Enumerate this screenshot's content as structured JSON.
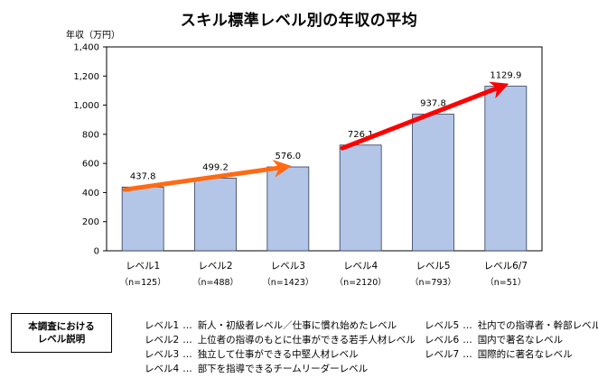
{
  "chart_data": {
    "type": "bar",
    "title": "スキル標準レベル別の年収の平均",
    "y_unit_label": "年収（万円）",
    "ylim": [
      0,
      1400
    ],
    "y_ticks": [
      "0",
      "200",
      "400",
      "600",
      "800",
      "1,000",
      "1,200",
      "1,400"
    ],
    "y_tick_values": [
      0,
      200,
      400,
      600,
      800,
      1000,
      1200,
      1400
    ],
    "categories": [
      "レベル1",
      "レベル2",
      "レベル3",
      "レベル4",
      "レベル5",
      "レベル6/7"
    ],
    "sample_sizes": [
      "（n=125）",
      "（n=488）",
      "（n=1423）",
      "（n=2120）",
      "（n=793）",
      "（n=51）"
    ],
    "values": [
      437.8,
      499.2,
      576.0,
      726.1,
      937.8,
      1129.9
    ],
    "value_labels": [
      "437.8",
      "499.2",
      "576.0",
      "726.1",
      "937.8",
      "1129.9"
    ],
    "grid": false,
    "colors": {
      "bar_fill": "#b4c6e7",
      "bar_stroke": "#2f3b5c",
      "arrow_low": "#ff6a13",
      "arrow_high": "#ff0000"
    },
    "arrows": [
      {
        "from": [
          0,
          420
        ],
        "to": [
          2,
          575
        ],
        "color": "#ff6a13"
      },
      {
        "from": [
          3,
          705
        ],
        "to": [
          5,
          1130
        ],
        "color": "#ff0000"
      }
    ]
  },
  "legend": {
    "heading_line1": "本調査における",
    "heading_line2": "レベル説明",
    "dots": "…",
    "levels_left": [
      {
        "level": "レベル1",
        "desc": "新人・初級者レベル／仕事に慣れ始めたレベル"
      },
      {
        "level": "レベル2",
        "desc": "上位者の指導のもとに仕事ができる若手人材レベル"
      },
      {
        "level": "レベル3",
        "desc": "独立して仕事ができる中堅人材レベル"
      },
      {
        "level": "レベル4",
        "desc": "部下を指導できるチームリーダーレベル"
      }
    ],
    "levels_right": [
      {
        "level": "レベル5",
        "desc": "社内での指導者・幹部レベル"
      },
      {
        "level": "レベル6",
        "desc": "国内で著名なレベル"
      },
      {
        "level": "レベル7",
        "desc": "国際的に著名なレベル"
      }
    ]
  }
}
